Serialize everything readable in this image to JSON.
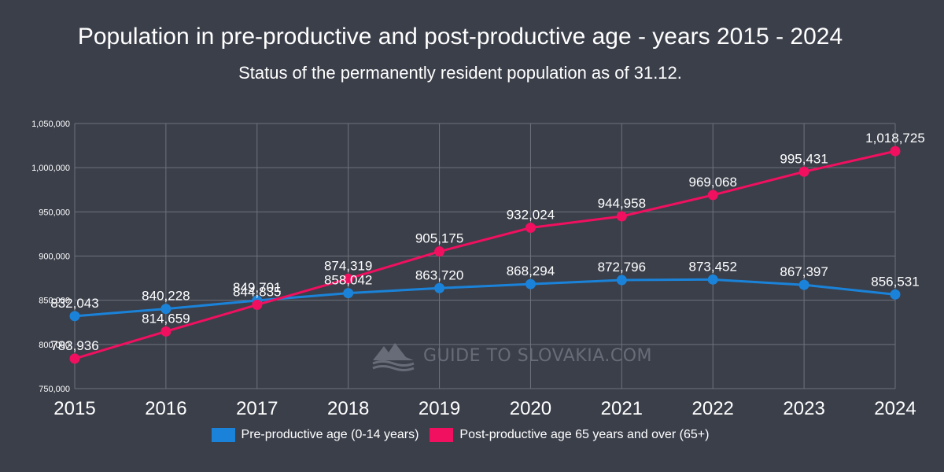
{
  "chart_data": {
    "type": "line",
    "title": "Population in pre-productive and post-productive age - years 2015 - 2024",
    "subtitle": "Status of the permanently resident population as of 31.12.",
    "xlabel": "",
    "ylabel": "",
    "categories": [
      "2015",
      "2016",
      "2017",
      "2018",
      "2019",
      "2020",
      "2021",
      "2022",
      "2023",
      "2024"
    ],
    "ylim": [
      750000,
      1050000
    ],
    "yticks": [
      750000,
      800000,
      850000,
      900000,
      950000,
      1000000,
      1050000
    ],
    "ytick_labels": [
      "750,000",
      "800,000",
      "850,000",
      "900,000",
      "950,000",
      "1,000,000",
      "1,050,000"
    ],
    "grid": true,
    "legend_position": "bottom-center",
    "series": [
      {
        "name": "Pre-productive age (0-14 years)",
        "color": "#1a83d9",
        "values": [
          832043,
          840228,
          849701,
          858042,
          863720,
          868294,
          872796,
          873452,
          867397,
          856531
        ],
        "labels": [
          "832,043",
          "840,228",
          "849,701",
          "858,042",
          "863,720",
          "868,294",
          "872,796",
          "873,452",
          "867,397",
          "856,531"
        ]
      },
      {
        "name": "Post-productive age 65 years and over (65+)",
        "color": "#f0105f",
        "values": [
          783936,
          814659,
          844835,
          874319,
          905175,
          932024,
          944958,
          969068,
          995431,
          1018725
        ],
        "labels": [
          "783,936",
          "814,659",
          "844,835",
          "874,319",
          "905,175",
          "932,024",
          "944,958",
          "969,068",
          "995,431",
          "1,018,725"
        ]
      }
    ]
  },
  "watermark": {
    "text": "GUIDE TO SLOVAKIA.COM",
    "icon": "mountain-logo-icon"
  }
}
